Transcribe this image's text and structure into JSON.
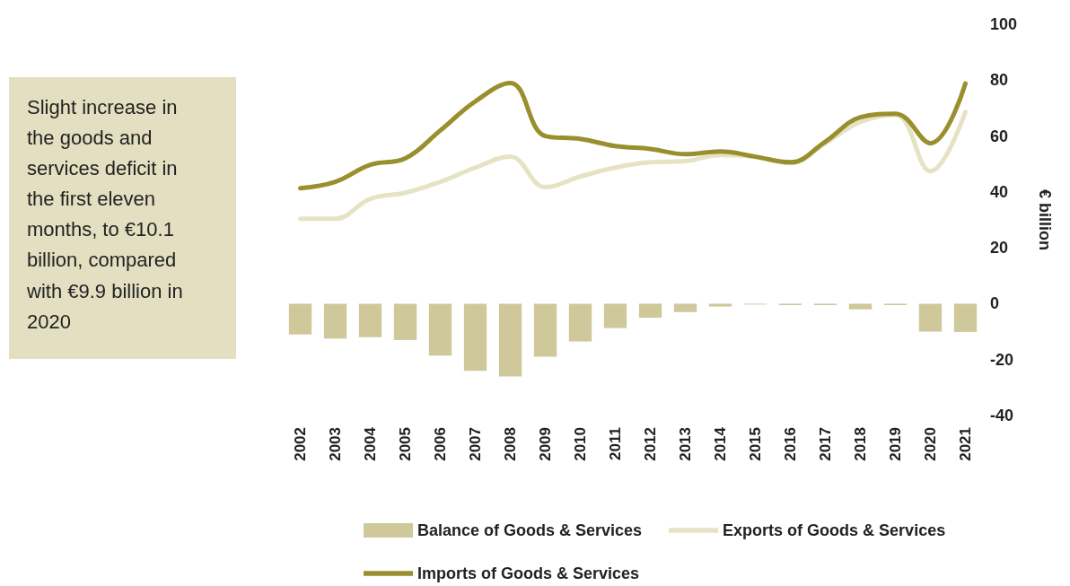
{
  "chart_data": {
    "type": "bar",
    "ylabel": "€ billion",
    "categories": [
      "2002",
      "2003",
      "2004",
      "2005",
      "2006",
      "2007",
      "2008",
      "2009",
      "2010",
      "2011",
      "2012",
      "2013",
      "2014",
      "2015",
      "2016",
      "2017",
      "2018",
      "2019",
      "2020",
      "2021"
    ],
    "series": [
      {
        "name": "Balance of Goods & Services",
        "color": "#cfc89a",
        "values": [
          -11,
          -12.5,
          -12,
          -13,
          -18.6,
          -24,
          -26,
          -19,
          -13.5,
          -8.7,
          -5,
          -3,
          -1,
          -0.3,
          -0.5,
          -0.5,
          -2,
          -0.5,
          -10,
          -10.1
        ]
      },
      {
        "name": "Exports of Goods & Services",
        "type": "line",
        "color": "#e6e3c4",
        "values": [
          30.4,
          30.4,
          37.5,
          39.7,
          43.6,
          48.7,
          52.6,
          41.7,
          45.5,
          48.7,
          50.6,
          51,
          53.2,
          52.6,
          50.3,
          57.4,
          65,
          67.6,
          47.4,
          68.6
        ]
      },
      {
        "name": "Imports of Goods & Services",
        "type": "line",
        "color": "#9a8f2e",
        "values": [
          41.3,
          43.6,
          49.7,
          52,
          62,
          72.4,
          79,
          60,
          59,
          56.4,
          55.4,
          53.5,
          54.5,
          52.6,
          50.6,
          58,
          66.7,
          68,
          57.4,
          78.8
        ]
      }
    ],
    "ylim": [
      -40,
      100
    ],
    "yticks": [
      -40,
      -20,
      0,
      20,
      40,
      60,
      80,
      100
    ],
    "grid": false,
    "legend": "bottom",
    "marker": "none",
    "line_style": "solid",
    "annotations": [
      "Slight increase in the goods and services deficit in the first eleven months, to €10.1 billion, compared with €9.9 billion in 2020"
    ]
  }
}
